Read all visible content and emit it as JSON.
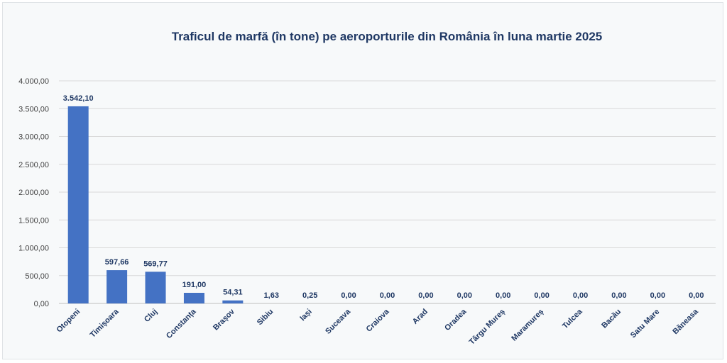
{
  "chart_data": {
    "type": "bar",
    "title": "Traficul de marfă (în tone) pe aeroporturile din România în luna martie 2025",
    "xlabel": "",
    "ylabel": "",
    "ylim": [
      0,
      4000
    ],
    "ytick_values": [
      0,
      500,
      1000,
      1500,
      2000,
      2500,
      3000,
      3500,
      4000
    ],
    "ytick_labels": [
      "0,00",
      "500,00",
      "1.000,00",
      "1.500,00",
      "2.000,00",
      "2.500,00",
      "3.000,00",
      "3.500,00",
      "4.000,00"
    ],
    "categories": [
      "Otopeni",
      "Timișoara",
      "Cluj",
      "Constanța",
      "Brașov",
      "Sibiu",
      "Iași",
      "Suceava",
      "Craiova",
      "Arad",
      "Oradea",
      "Târgu Mureș",
      "Maramureș",
      "Tulcea",
      "Bacău",
      "Satu Mare",
      "Băneasa"
    ],
    "values": [
      3542.1,
      597.66,
      569.77,
      191.0,
      54.31,
      1.63,
      0.25,
      0,
      0,
      0,
      0,
      0,
      0,
      0,
      0,
      0,
      0
    ],
    "value_labels": [
      "3.542,10",
      "597,66",
      "569,77",
      "191,00",
      "54,31",
      "1,63",
      "0,25",
      "0,00",
      "0,00",
      "0,00",
      "0,00",
      "0,00",
      "0,00",
      "0,00",
      "0,00",
      "0,00",
      "0,00"
    ],
    "grid": true,
    "legend": "none",
    "colors": {
      "bar": "#4472c4",
      "title": "#1f3864",
      "background": "#f7f9fa"
    }
  }
}
